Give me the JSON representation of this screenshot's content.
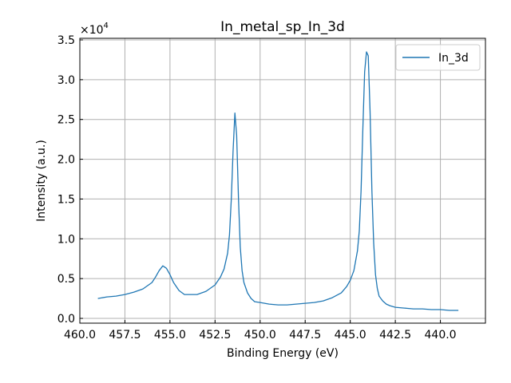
{
  "chart_data": {
    "type": "line",
    "title": "In_metal_sp_In_3d",
    "xlabel": "Binding Energy (eV)",
    "ylabel": "Intensity (a.u.)",
    "y_multiplier_label": "×10",
    "y_multiplier_exponent": "4",
    "x_reversed": true,
    "xlim": [
      460.0,
      437.5
    ],
    "ylim": [
      -0.06,
      3.52
    ],
    "y_unit_scale": 10000,
    "grid": true,
    "legend_position": "top-right",
    "x_ticks": [
      460.0,
      457.5,
      455.0,
      452.5,
      450.0,
      447.5,
      445.0,
      442.5,
      440.0
    ],
    "x_tick_labels": [
      "460.0",
      "457.5",
      "455.0",
      "452.5",
      "450.0",
      "447.5",
      "445.0",
      "442.5",
      "440.0"
    ],
    "y_ticks": [
      0.0,
      0.5,
      1.0,
      1.5,
      2.0,
      2.5,
      3.0,
      3.5
    ],
    "y_tick_labels": [
      "0.0",
      "0.5",
      "1.0",
      "1.5",
      "2.0",
      "2.5",
      "3.0",
      "3.5"
    ],
    "series": [
      {
        "name": "In_3d",
        "color": "#1f77b4",
        "x": [
          459.0,
          458.5,
          458.0,
          457.5,
          457.0,
          456.5,
          456.0,
          455.8,
          455.6,
          455.4,
          455.2,
          455.0,
          454.8,
          454.5,
          454.2,
          454.0,
          453.5,
          453.0,
          452.5,
          452.2,
          452.0,
          451.8,
          451.7,
          451.6,
          451.5,
          451.4,
          451.3,
          451.2,
          451.1,
          451.0,
          450.9,
          450.7,
          450.5,
          450.3,
          450.0,
          449.5,
          449.0,
          448.5,
          448.0,
          447.5,
          447.0,
          446.5,
          446.0,
          445.5,
          445.2,
          445.0,
          444.8,
          444.6,
          444.5,
          444.4,
          444.3,
          444.2,
          444.1,
          444.0,
          443.9,
          443.8,
          443.7,
          443.6,
          443.5,
          443.4,
          443.2,
          443.0,
          442.8,
          442.5,
          442.0,
          441.5,
          441.0,
          440.5,
          440.0,
          439.5,
          439.0
        ],
        "values": [
          0.25,
          0.27,
          0.28,
          0.3,
          0.33,
          0.37,
          0.45,
          0.52,
          0.6,
          0.66,
          0.63,
          0.55,
          0.45,
          0.35,
          0.3,
          0.3,
          0.3,
          0.34,
          0.42,
          0.52,
          0.62,
          0.82,
          1.05,
          1.5,
          2.1,
          2.58,
          2.3,
          1.5,
          0.9,
          0.6,
          0.45,
          0.32,
          0.25,
          0.21,
          0.2,
          0.18,
          0.17,
          0.17,
          0.18,
          0.19,
          0.2,
          0.22,
          0.26,
          0.32,
          0.4,
          0.48,
          0.6,
          0.85,
          1.1,
          1.6,
          2.4,
          3.1,
          3.35,
          3.3,
          2.6,
          1.6,
          0.95,
          0.55,
          0.38,
          0.28,
          0.22,
          0.18,
          0.16,
          0.14,
          0.13,
          0.12,
          0.12,
          0.11,
          0.11,
          0.1,
          0.1
        ]
      }
    ]
  }
}
